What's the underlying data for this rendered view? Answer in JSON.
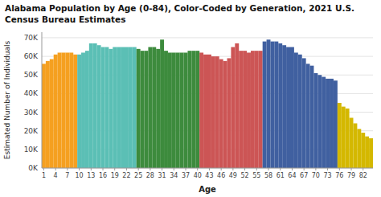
{
  "chart_data": {
    "type": "bar",
    "title": "Alabama Population by Age (0-84), Color-Coded by Generation, 2021 U.S.\nCensus Bureau Estimates",
    "x_label": "Age",
    "y_label": "Estimated Number of Individuals",
    "x": [
      1,
      2,
      3,
      4,
      5,
      6,
      7,
      8,
      9,
      10,
      11,
      12,
      13,
      14,
      15,
      16,
      17,
      18,
      19,
      20,
      21,
      22,
      23,
      24,
      25,
      26,
      27,
      28,
      29,
      30,
      31,
      32,
      33,
      34,
      35,
      36,
      37,
      38,
      39,
      40,
      41,
      42,
      43,
      44,
      45,
      46,
      47,
      48,
      49,
      50,
      51,
      52,
      53,
      54,
      55,
      56,
      57,
      58,
      59,
      60,
      61,
      62,
      63,
      64,
      65,
      66,
      67,
      68,
      69,
      70,
      71,
      72,
      73,
      74,
      75,
      76,
      77,
      78,
      79,
      80,
      81,
      82,
      83,
      84
    ],
    "values": [
      56000,
      57500,
      58500,
      61000,
      62000,
      62000,
      62000,
      62000,
      61000,
      61000,
      62000,
      63000,
      67000,
      67000,
      66000,
      65000,
      65000,
      64000,
      65000,
      65000,
      65000,
      65000,
      65000,
      65000,
      64000,
      63000,
      63000,
      65000,
      65000,
      64000,
      69000,
      63000,
      62000,
      62000,
      62000,
      62000,
      62000,
      63000,
      63000,
      63000,
      62000,
      61000,
      61000,
      60000,
      60000,
      58500,
      57500,
      59000,
      65000,
      67000,
      63000,
      63000,
      62000,
      63000,
      63000,
      63000,
      68000,
      69000,
      68000,
      68000,
      67000,
      66000,
      65000,
      65000,
      62000,
      61000,
      59000,
      56000,
      55000,
      51000,
      50000,
      49000,
      48000,
      48000,
      47000,
      35000,
      33000,
      32000,
      27000,
      24000,
      21000,
      19000,
      17000,
      16000
    ],
    "colors": [
      "#F5A020",
      "#F5A020",
      "#F5A020",
      "#F5A020",
      "#F5A020",
      "#F5A020",
      "#F5A020",
      "#F5A020",
      "#F5A020",
      "#5BBFB5",
      "#5BBFB5",
      "#5BBFB5",
      "#5BBFB5",
      "#5BBFB5",
      "#5BBFB5",
      "#5BBFB5",
      "#5BBFB5",
      "#5BBFB5",
      "#5BBFB5",
      "#5BBFB5",
      "#5BBFB5",
      "#5BBFB5",
      "#5BBFB5",
      "#5BBFB5",
      "#3D8B3D",
      "#3D8B3D",
      "#3D8B3D",
      "#3D8B3D",
      "#3D8B3D",
      "#3D8B3D",
      "#3D8B3D",
      "#3D8B3D",
      "#3D8B3D",
      "#3D8B3D",
      "#3D8B3D",
      "#3D8B3D",
      "#3D8B3D",
      "#3D8B3D",
      "#3D8B3D",
      "#3D8B3D",
      "#CC5555",
      "#CC5555",
      "#CC5555",
      "#CC5555",
      "#CC5555",
      "#CC5555",
      "#CC5555",
      "#CC5555",
      "#CC5555",
      "#CC5555",
      "#CC5555",
      "#CC5555",
      "#CC5555",
      "#CC5555",
      "#CC5555",
      "#CC5555",
      "#4060A0",
      "#4060A0",
      "#4060A0",
      "#4060A0",
      "#4060A0",
      "#4060A0",
      "#4060A0",
      "#4060A0",
      "#4060A0",
      "#4060A0",
      "#4060A0",
      "#4060A0",
      "#4060A0",
      "#4060A0",
      "#4060A0",
      "#4060A0",
      "#4060A0",
      "#4060A0",
      "#4060A0",
      "#D4B800",
      "#D4B800",
      "#D4B800",
      "#D4B800",
      "#D4B800",
      "#D4B800",
      "#D4B800",
      "#D4B800",
      "#D4B800"
    ],
    "xlim": [
      0.5,
      84.5
    ],
    "xticks": [
      1,
      4,
      7,
      10,
      13,
      16,
      19,
      22,
      25,
      28,
      31,
      34,
      37,
      40,
      43,
      46,
      49,
      52,
      55,
      58,
      61,
      64,
      67,
      70,
      73,
      76,
      79,
      82
    ],
    "ylim": [
      0,
      73000
    ],
    "yticks": [
      {
        "value": 0,
        "label": "0K"
      },
      {
        "value": 10000,
        "label": "10K"
      },
      {
        "value": 20000,
        "label": "20K"
      },
      {
        "value": 30000,
        "label": "30K"
      },
      {
        "value": 40000,
        "label": "40K"
      },
      {
        "value": 50000,
        "label": "50K"
      },
      {
        "value": 60000,
        "label": "60K"
      },
      {
        "value": 70000,
        "label": "70K"
      }
    ],
    "grid": true
  }
}
